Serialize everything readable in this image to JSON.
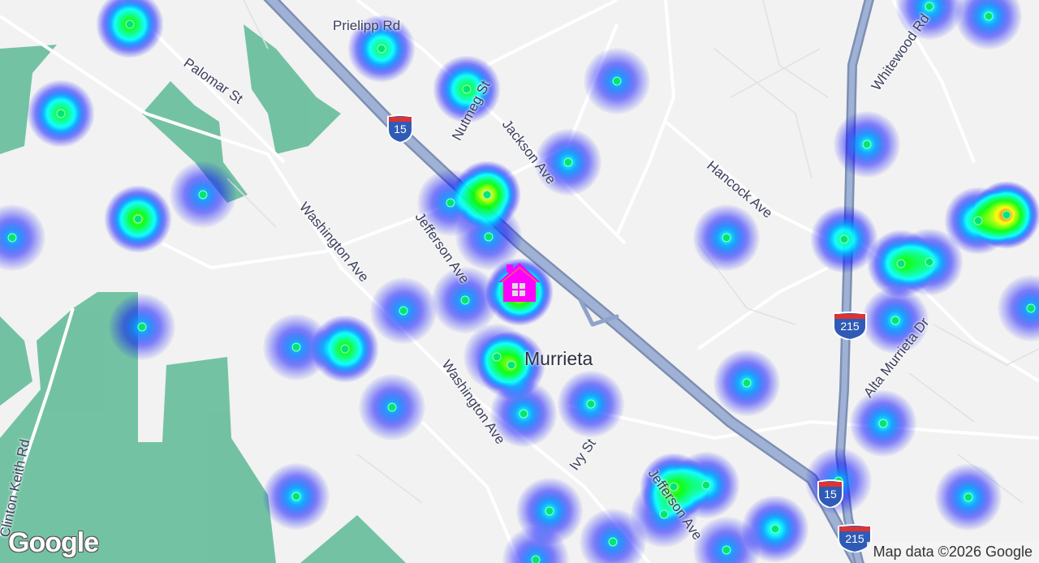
{
  "map": {
    "place_label": "Murrieta",
    "road_labels": {
      "prielipp": "Prielipp Rd",
      "palomar": "Palomar St",
      "nutmeg": "Nutmeg St",
      "jackson": "Jackson Ave",
      "whitewood": "Whitewood Rd",
      "hancock": "Hancock Ave",
      "washington1": "Washington Ave",
      "jefferson1": "Jefferson Ave",
      "washington2": "Washington Ave",
      "ivy": "Ivy St",
      "jefferson2": "Jefferson Ave",
      "alta_murrieta": "Alta Murrieta Dr",
      "clinton_keith": "Clinton Keith Rd"
    },
    "shields": {
      "i15": "15",
      "i215": "215"
    },
    "logo": "Google",
    "attribution": "Map data ©2026 Google",
    "marker_icon": "home-icon",
    "colors": {
      "background": "#f2f2f2",
      "park": "#6dbf9f",
      "highway": "#8ea3c7",
      "marker": "#ff00ff",
      "point": "#00e676"
    },
    "heatmap_gradient": [
      "#0000ff",
      "#00ffff",
      "#00ff00",
      "#ffff00",
      "#ff0000"
    ]
  }
}
